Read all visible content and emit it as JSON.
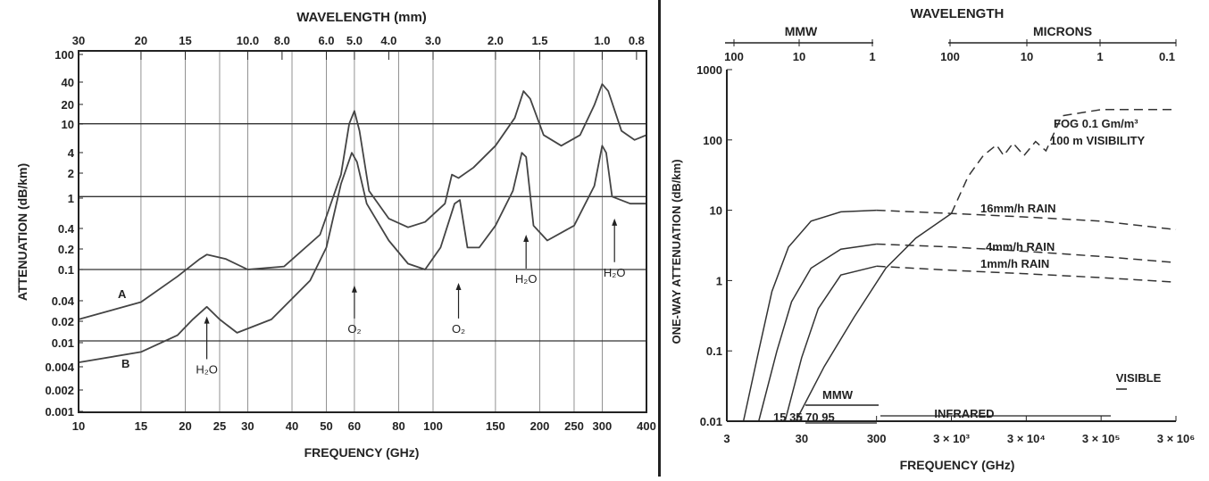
{
  "chart_data": [
    {
      "type": "line",
      "top_axis_title": "WAVELENGTH (mm)",
      "top_ticks": [
        "30",
        "20",
        "15",
        "10.0",
        "8.0",
        "6.0",
        "5.0",
        "4.0",
        "3.0",
        "2.0",
        "1.5",
        "1.0",
        "0.8"
      ],
      "top_tick_freqs": [
        10,
        15,
        20,
        30,
        37.5,
        50,
        60,
        75,
        100,
        150,
        200,
        300,
        375
      ],
      "xlabel": "FREQUENCY (GHz)",
      "ylabel": "ATTENUATION (dB/km)",
      "xlim": [
        10,
        400
      ],
      "x_ticks": [
        {
          "v": 10,
          "label": "10"
        },
        {
          "v": 15,
          "label": "15"
        },
        {
          "v": 20,
          "label": "20"
        },
        {
          "v": 25,
          "label": "25"
        },
        {
          "v": 30,
          "label": "30"
        },
        {
          "v": 40,
          "label": "40"
        },
        {
          "v": 50,
          "label": "50"
        },
        {
          "v": 60,
          "label": "60"
        },
        {
          "v": 80,
          "label": "80"
        },
        {
          "v": 100,
          "label": "100"
        },
        {
          "v": 150,
          "label": "150"
        },
        {
          "v": 200,
          "label": "200"
        },
        {
          "v": 250,
          "label": "250"
        },
        {
          "v": 300,
          "label": "300"
        },
        {
          "v": 400,
          "label": "400"
        }
      ],
      "y_ticks": [
        "100",
        "40",
        "20",
        "10",
        "4",
        "2",
        "1",
        "0.4",
        "0.2",
        "0.1",
        "0.04",
        "0.02",
        "0.01",
        "0.004",
        "0.002",
        "0.001"
      ],
      "series": [
        {
          "name": "A",
          "points": [
            [
              10,
              0.02
            ],
            [
              15,
              0.035
            ],
            [
              19,
              0.08
            ],
            [
              22,
              0.14
            ],
            [
              23,
              0.16
            ],
            [
              26,
              0.14
            ],
            [
              30,
              0.1
            ],
            [
              38,
              0.11
            ],
            [
              48,
              0.3
            ],
            [
              55,
              2
            ],
            [
              58,
              10
            ],
            [
              60,
              15
            ],
            [
              62,
              8
            ],
            [
              66,
              1.2
            ],
            [
              75,
              0.5
            ],
            [
              85,
              0.38
            ],
            [
              95,
              0.45
            ],
            [
              108,
              0.8
            ],
            [
              113,
              2
            ],
            [
              118,
              1.8
            ],
            [
              130,
              2.5
            ],
            [
              150,
              5
            ],
            [
              170,
              12
            ],
            [
              180,
              28
            ],
            [
              188,
              22
            ],
            [
              205,
              7
            ],
            [
              230,
              5
            ],
            [
              260,
              7
            ],
            [
              285,
              18
            ],
            [
              300,
              35
            ],
            [
              312,
              28
            ],
            [
              340,
              8
            ],
            [
              370,
              6
            ],
            [
              400,
              7
            ]
          ]
        },
        {
          "name": "B",
          "points": [
            [
              10,
              0.005
            ],
            [
              15,
              0.007
            ],
            [
              19,
              0.012
            ],
            [
              21,
              0.02
            ],
            [
              23,
              0.03
            ],
            [
              25,
              0.02
            ],
            [
              28,
              0.013
            ],
            [
              35,
              0.02
            ],
            [
              45,
              0.07
            ],
            [
              50,
              0.2
            ],
            [
              55,
              1.5
            ],
            [
              59,
              4
            ],
            [
              61,
              3
            ],
            [
              65,
              0.8
            ],
            [
              75,
              0.25
            ],
            [
              85,
              0.12
            ],
            [
              95,
              0.1
            ],
            [
              105,
              0.2
            ],
            [
              115,
              0.8
            ],
            [
              119,
              0.9
            ],
            [
              125,
              0.2
            ],
            [
              135,
              0.2
            ],
            [
              150,
              0.4
            ],
            [
              168,
              1.2
            ],
            [
              178,
              4
            ],
            [
              183,
              3.5
            ],
            [
              192,
              0.4
            ],
            [
              210,
              0.25
            ],
            [
              250,
              0.4
            ],
            [
              285,
              1.4
            ],
            [
              300,
              5
            ],
            [
              308,
              4
            ],
            [
              320,
              1
            ],
            [
              360,
              0.8
            ],
            [
              400,
              0.8
            ]
          ]
        }
      ],
      "labels": [
        "A",
        "B"
      ],
      "annotations": [
        {
          "text": "H₂O",
          "x": 23,
          "y": 0.0035,
          "arrow_to_y": 0.022
        },
        {
          "text": "O₂",
          "x": 60,
          "y": 0.013,
          "arrow_to_y": 0.06
        },
        {
          "text": "O₂",
          "x": 118,
          "y": 0.013,
          "arrow_to_y": 0.065
        },
        {
          "text": "H₂O",
          "x": 183,
          "y": 0.065,
          "arrow_to_y": 0.3
        },
        {
          "text": "H₂O",
          "x": 325,
          "y": 0.08,
          "arrow_to_y": 0.5
        }
      ],
      "grid": true
    },
    {
      "type": "line",
      "top_axis_title": "WAVELENGTH",
      "top_band_mmw": "MMW",
      "top_band_microns": "MICRONS",
      "top_ticks_mmw": [
        "100",
        "10",
        "1"
      ],
      "top_ticks_microns": [
        "100",
        "10",
        "1",
        "0.1"
      ],
      "xlabel": "FREQUENCY (GHz)",
      "ylabel": "ONE-WAY ATTENUATION (dB/km)",
      "xlim": [
        3,
        3000000
      ],
      "ylim": [
        0.01,
        1000
      ],
      "x_ticks": [
        {
          "v": 3,
          "label": "3"
        },
        {
          "v": 30,
          "label": "30"
        },
        {
          "v": 300,
          "label": "300"
        },
        {
          "v": 3000,
          "label": "3 × 10³"
        },
        {
          "v": 30000,
          "label": "3 × 10⁴"
        },
        {
          "v": 300000,
          "label": "3 × 10⁵"
        },
        {
          "v": 3000000,
          "label": "3 × 10⁶"
        }
      ],
      "y_ticks": [
        "1000",
        "100",
        "10",
        "1",
        "0.1",
        "0.01"
      ],
      "series": [
        {
          "name": "16mm/h RAIN",
          "points_solid": [
            [
              5,
              0.01
            ],
            [
              8,
              0.1
            ],
            [
              12,
              0.7
            ],
            [
              20,
              3
            ],
            [
              40,
              7
            ],
            [
              100,
              9.5
            ],
            [
              300,
              10
            ]
          ],
          "points_dashed": [
            [
              300,
              10
            ],
            [
              3000,
              9
            ],
            [
              30000,
              8
            ],
            [
              300000,
              7
            ],
            [
              3000000,
              5.3
            ]
          ]
        },
        {
          "name": "4mm/h RAIN",
          "points_solid": [
            [
              8,
              0.01
            ],
            [
              14,
              0.1
            ],
            [
              22,
              0.5
            ],
            [
              40,
              1.5
            ],
            [
              100,
              2.8
            ],
            [
              300,
              3.3
            ]
          ],
          "points_dashed": [
            [
              300,
              3.3
            ],
            [
              3000,
              3
            ],
            [
              30000,
              2.6
            ],
            [
              300000,
              2.2
            ],
            [
              3000000,
              1.8
            ]
          ]
        },
        {
          "name": "1mm/h RAIN",
          "points_solid": [
            [
              18,
              0.01
            ],
            [
              30,
              0.08
            ],
            [
              50,
              0.4
            ],
            [
              100,
              1.2
            ],
            [
              300,
              1.6
            ]
          ],
          "points_dashed": [
            [
              300,
              1.6
            ],
            [
              3000,
              1.4
            ],
            [
              30000,
              1.25
            ],
            [
              300000,
              1.1
            ],
            [
              3000000,
              0.95
            ]
          ]
        },
        {
          "name": "FOG 0.1 Gm/m³ 100 m VISIBILITY",
          "points_solid": [
            [
              25,
              0.01
            ],
            [
              60,
              0.06
            ],
            [
              150,
              0.3
            ],
            [
              400,
              1.5
            ],
            [
              1000,
              4
            ],
            [
              3000,
              9
            ]
          ],
          "points_dashed": [
            [
              3000,
              9
            ],
            [
              5000,
              30
            ],
            [
              8000,
              60
            ],
            [
              12000,
              85
            ],
            [
              15000,
              60
            ],
            [
              20000,
              90
            ],
            [
              28000,
              60
            ],
            [
              40000,
              95
            ],
            [
              55000,
              70
            ],
            [
              90000,
              220
            ],
            [
              300000,
              270
            ],
            [
              3000000,
              270
            ]
          ]
        }
      ],
      "series_labels": [
        "FOG 0.1 Gm/m³",
        "100 m VISIBILITY",
        "16mm/h RAIN",
        "4mm/h RAIN",
        "1mm/h RAIN"
      ],
      "bottom_band_mmw_label": "MMW",
      "bottom_band_mmw_ticks": "15 35 70 95",
      "bottom_band_infrared_label": "INFRARED",
      "bottom_band_visible_label": "VISIBLE",
      "grid": false
    }
  ]
}
